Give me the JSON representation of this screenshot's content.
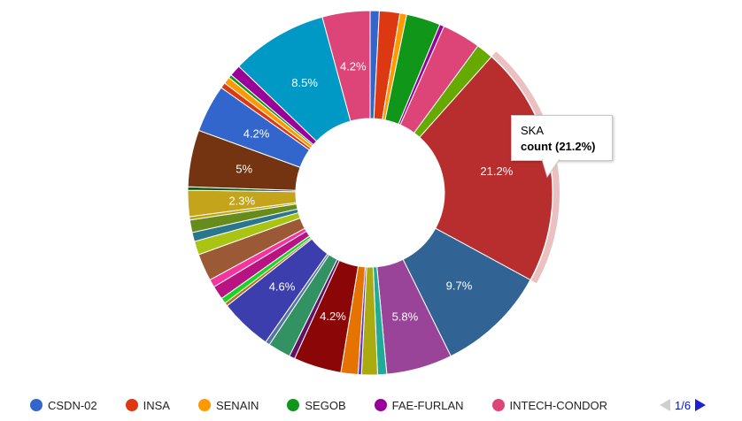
{
  "chart_data": {
    "type": "pie",
    "donut": true,
    "legend_position": "bottom",
    "slices": [
      {
        "label": "CSDN-02",
        "value": 0.8,
        "color": "#3366cc"
      },
      {
        "label": "INSA",
        "value": 1.8,
        "color": "#dc3912"
      },
      {
        "label": "SENAIN",
        "value": 0.6,
        "color": "#ff9900"
      },
      {
        "label": "SEGOB",
        "value": 3.0,
        "color": "#109618"
      },
      {
        "label": "FAE-FURLAN",
        "value": 0.4,
        "color": "#990099"
      },
      {
        "label": "INTECH-CONDOR",
        "value": 3.4,
        "color": "#dd4477"
      },
      {
        "label": "",
        "value": 1.5,
        "color": "#66aa00"
      },
      {
        "label": "SKA",
        "value": 21.2,
        "color": "#b82e2e",
        "display": "21.2%",
        "highlighted": true
      },
      {
        "label": "",
        "value": 9.7,
        "color": "#316395",
        "display": "9.7%"
      },
      {
        "label": "",
        "value": 5.8,
        "color": "#994499",
        "display": "5.8%"
      },
      {
        "label": "",
        "value": 0.8,
        "color": "#22aa99"
      },
      {
        "label": "",
        "value": 1.4,
        "color": "#aaaa11"
      },
      {
        "label": "",
        "value": 0.3,
        "color": "#6633cc"
      },
      {
        "label": "",
        "value": 1.5,
        "color": "#e67300"
      },
      {
        "label": "",
        "value": 4.2,
        "color": "#8b0707",
        "display": "4.2%"
      },
      {
        "label": "",
        "value": 0.5,
        "color": "#651067"
      },
      {
        "label": "",
        "value": 2.0,
        "color": "#329262"
      },
      {
        "label": "",
        "value": 0.4,
        "color": "#5574a6"
      },
      {
        "label": "",
        "value": 4.6,
        "color": "#3b3eac",
        "display": "4.6%"
      },
      {
        "label": "",
        "value": 0.3,
        "color": "#b77322"
      },
      {
        "label": "",
        "value": 0.5,
        "color": "#16d620"
      },
      {
        "label": "",
        "value": 1.2,
        "color": "#b91383"
      },
      {
        "label": "",
        "value": 0.7,
        "color": "#f4359e"
      },
      {
        "label": "",
        "value": 2.4,
        "color": "#9c5935"
      },
      {
        "label": "",
        "value": 1.2,
        "color": "#a9c413"
      },
      {
        "label": "",
        "value": 0.8,
        "color": "#2a778d"
      },
      {
        "label": "",
        "value": 1.1,
        "color": "#668d1c"
      },
      {
        "label": "",
        "value": 0.3,
        "color": "#bea413"
      },
      {
        "label": "",
        "value": 2.3,
        "color": "#c4a41a",
        "display": "2.3%"
      },
      {
        "label": "",
        "value": 0.3,
        "color": "#0c5922"
      },
      {
        "label": "",
        "value": 5.0,
        "color": "#743411",
        "display": "5%"
      },
      {
        "label": "",
        "value": 4.2,
        "color": "#3366cc",
        "display": "4.2%"
      },
      {
        "label": "",
        "value": 0.5,
        "color": "#dc3912"
      },
      {
        "label": "",
        "value": 0.6,
        "color": "#ff9900"
      },
      {
        "label": "",
        "value": 0.3,
        "color": "#109618"
      },
      {
        "label": "",
        "value": 1.0,
        "color": "#990099"
      },
      {
        "label": "",
        "value": 8.5,
        "color": "#0099c6",
        "display": "8.5%"
      },
      {
        "label": "",
        "value": 4.2,
        "color": "#dd4477",
        "display": "4.2%"
      }
    ]
  },
  "legend": {
    "items": [
      {
        "label": "CSDN-02",
        "color": "#3366cc"
      },
      {
        "label": "INSA",
        "color": "#dc3912"
      },
      {
        "label": "SENAIN",
        "color": "#ff9900"
      },
      {
        "label": "SEGOB",
        "color": "#109618"
      },
      {
        "label": "FAE-FURLAN",
        "color": "#990099"
      },
      {
        "label": "INTECH-CONDOR",
        "color": "#dd4477"
      }
    ]
  },
  "pager": {
    "text": "1/6"
  },
  "tooltip": {
    "title": "SKA",
    "value": "count (21.2%)"
  }
}
